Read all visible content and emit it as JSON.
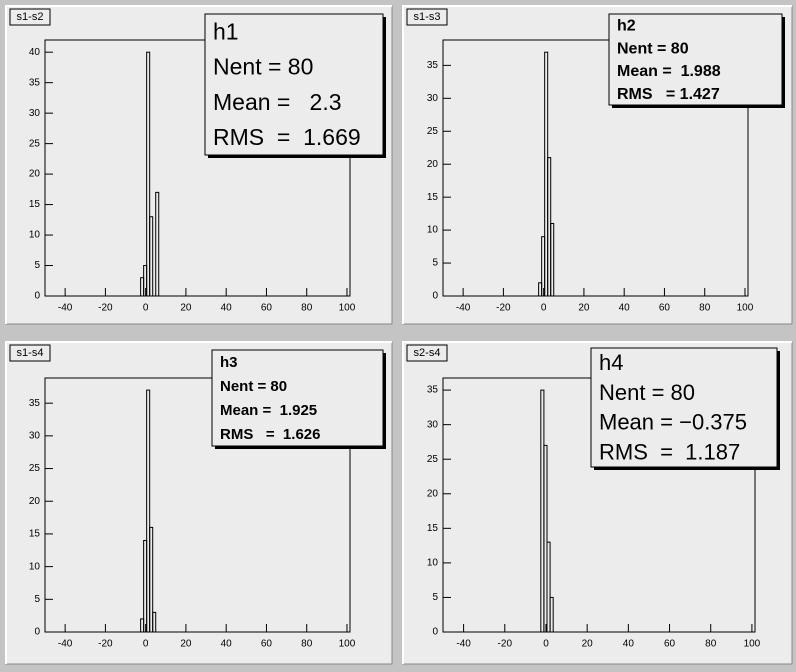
{
  "chart_data": [
    {
      "type": "histogram",
      "title": "s1-s2",
      "stats": [
        "h1",
        "Nent = 80",
        "Mean =   2.3",
        "RMS  =  1.669"
      ],
      "bins": [
        -2.5,
        -1,
        0.5,
        2,
        3.5,
        5,
        6.5
      ],
      "values": [
        3,
        5,
        40,
        13,
        0,
        17
      ],
      "color": "#000000",
      "xlim": [
        -50,
        101.5
      ],
      "xticks": [
        -40,
        -20,
        0,
        20,
        40,
        60,
        80,
        100
      ],
      "ylim": [
        0,
        42
      ],
      "yticks": [
        0,
        5,
        10,
        15,
        20,
        25,
        30,
        35,
        40
      ]
    },
    {
      "type": "histogram",
      "title": "s1-s3",
      "stats": [
        "h2",
        "Nent = 80",
        "Mean =  1.988",
        "RMS   = 1.427"
      ],
      "bins": [
        -2.5,
        -1,
        0.5,
        2,
        3.5,
        5
      ],
      "values": [
        2,
        9,
        37,
        21,
        11
      ],
      "color": "#000000",
      "xlim": [
        -50,
        101.5
      ],
      "xticks": [
        -40,
        -20,
        0,
        20,
        40,
        60,
        80,
        100
      ],
      "ylim": [
        0,
        38.85
      ],
      "yticks": [
        0,
        5,
        10,
        15,
        20,
        25,
        30,
        35
      ]
    },
    {
      "type": "histogram",
      "title": "s1-s4",
      "stats": [
        "h3",
        "Nent = 80",
        "Mean =  1.925",
        "RMS   =  1.626"
      ],
      "bins": [
        -2.5,
        -1,
        0.5,
        2,
        3.5,
        5
      ],
      "values": [
        2,
        14,
        37,
        16,
        3
      ],
      "color": "#000000",
      "xlim": [
        -50,
        101.5
      ],
      "xticks": [
        -40,
        -20,
        0,
        20,
        40,
        60,
        80,
        100
      ],
      "ylim": [
        0,
        38.85
      ],
      "yticks": [
        0,
        5,
        10,
        15,
        20,
        25,
        30,
        35
      ]
    },
    {
      "type": "histogram",
      "title": "s2-s4",
      "stats": [
        "h4",
        "Nent = 80",
        "Mean = −0.375",
        "RMS  =  1.187"
      ],
      "bins": [
        -2.5,
        -1,
        0.5,
        2,
        3.5
      ],
      "values": [
        35,
        27,
        13,
        5
      ],
      "color": "#000000",
      "xlim": [
        -50,
        101.5
      ],
      "xticks": [
        -40,
        -20,
        0,
        20,
        40,
        60,
        80,
        100
      ],
      "ylim": [
        0,
        36.75
      ],
      "yticks": [
        0,
        5,
        10,
        15,
        20,
        25,
        30,
        35
      ]
    }
  ]
}
